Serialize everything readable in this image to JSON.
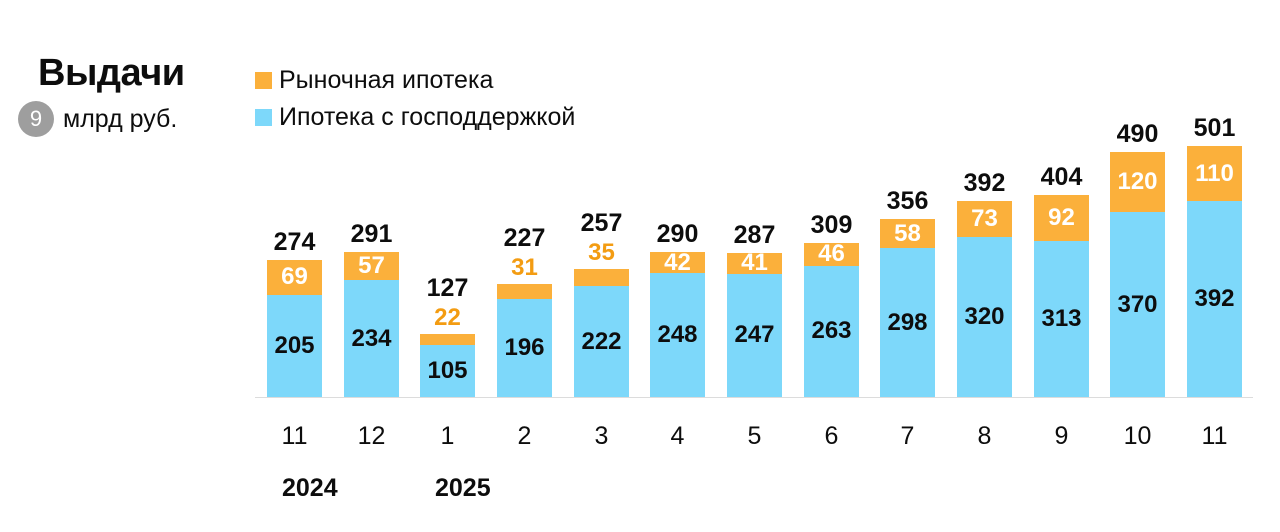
{
  "header": {
    "title": "Выдачи",
    "badge": "9",
    "unit": "млрд руб."
  },
  "legend": [
    {
      "label": "Рыночная ипотека",
      "color": "#FBB03B"
    },
    {
      "label": "Ипотека с господдержкой",
      "color": "#7DD8FA"
    }
  ],
  "chart_data": {
    "type": "bar",
    "stacked": true,
    "title": "Выдачи",
    "subtitle": "млрд руб.",
    "categories": [
      "11",
      "12",
      "1",
      "2",
      "3",
      "4",
      "5",
      "6",
      "7",
      "8",
      "9",
      "10",
      "11"
    ],
    "year_labels": [
      {
        "label": "2024",
        "at_index": 0
      },
      {
        "label": "2025",
        "at_index": 2
      }
    ],
    "series": [
      {
        "name": "Ипотека с господдержкой",
        "color": "#7DD8FA",
        "values": [
          205,
          234,
          105,
          196,
          222,
          248,
          247,
          263,
          298,
          320,
          313,
          370,
          392
        ]
      },
      {
        "name": "Рыночная ипотека",
        "color": "#FBB03B",
        "values": [
          69,
          57,
          22,
          31,
          35,
          42,
          41,
          46,
          58,
          73,
          92,
          120,
          110
        ]
      }
    ],
    "totals": [
      274,
      291,
      127,
      227,
      257,
      290,
      287,
      309,
      356,
      392,
      404,
      490,
      501
    ],
    "xlabel": "",
    "ylabel": "",
    "ylim": [
      0,
      520
    ],
    "grid": false,
    "legend_position": "top-left"
  }
}
